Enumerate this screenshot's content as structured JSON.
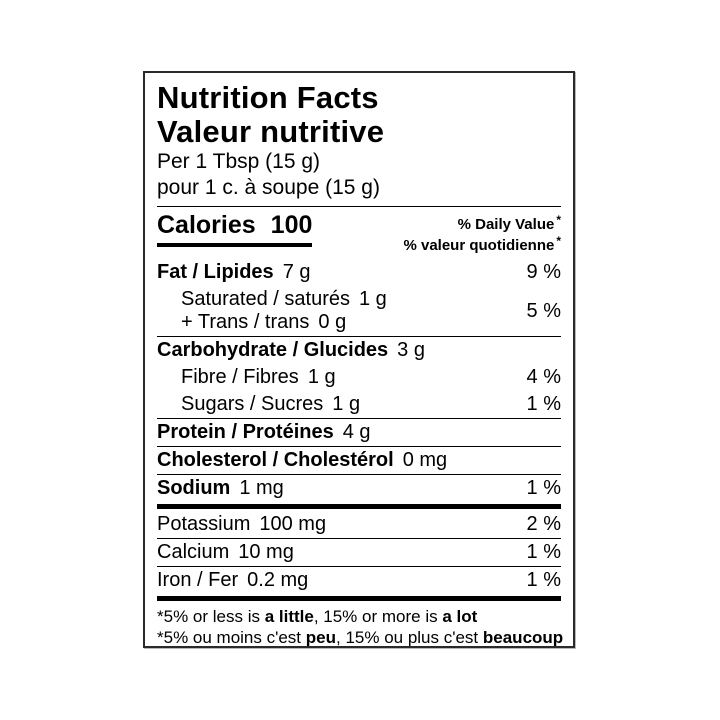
{
  "colors": {
    "text": "#000000",
    "background": "#ffffff",
    "border": "#2a2a2a"
  },
  "label": {
    "title_en": "Nutrition Facts",
    "title_fr": "Valeur nutritive",
    "serving_en": "Per 1 Tbsp (15 g)",
    "serving_fr": "pour 1 c. à soupe (15 g)",
    "calories_label": "Calories",
    "calories_value": "100",
    "daily_value_header": {
      "en": "% Daily Value",
      "fr": "% valeur quotidienne",
      "asterisk": "*"
    }
  },
  "rows": [
    {
      "label": "Fat / Lipides",
      "amount": "7 g",
      "percent": "9 %"
    },
    {
      "line1_label": "Saturated / saturés",
      "line1_amount": "1 g",
      "line2_label": "+ Trans / trans",
      "line2_amount": "0 g",
      "percent": "5 %"
    },
    {
      "label": "Carbohydrate / Glucides",
      "amount": "3 g",
      "percent": ""
    },
    {
      "label": "Fibre / Fibres",
      "amount": "1 g",
      "percent": "4 %"
    },
    {
      "label": "Sugars / Sucres",
      "amount": "1 g",
      "percent": "1 %"
    },
    {
      "label": "Protein / Protéines",
      "amount": "4 g",
      "percent": ""
    },
    {
      "label": "Cholesterol / Cholestérol",
      "amount": "0 mg",
      "percent": ""
    },
    {
      "label": "Sodium",
      "amount": "1 mg",
      "percent": "1 %"
    },
    {
      "label": "Potassium",
      "amount": "100 mg",
      "percent": "2 %"
    },
    {
      "label": "Calcium",
      "amount": "10 mg",
      "percent": "1 %"
    },
    {
      "label": "Iron / Fer",
      "amount": "0.2 mg",
      "percent": "1 %"
    }
  ],
  "footnotes": {
    "en": {
      "p1": "*5% or less is ",
      "b1": "a little",
      "p2": ", 15% or more is ",
      "b2": "a lot"
    },
    "fr": {
      "p1": "*5% ou moins c'est ",
      "b1": "peu",
      "p2": ", 15% ou plus c'est ",
      "b2": "beaucoup"
    }
  }
}
